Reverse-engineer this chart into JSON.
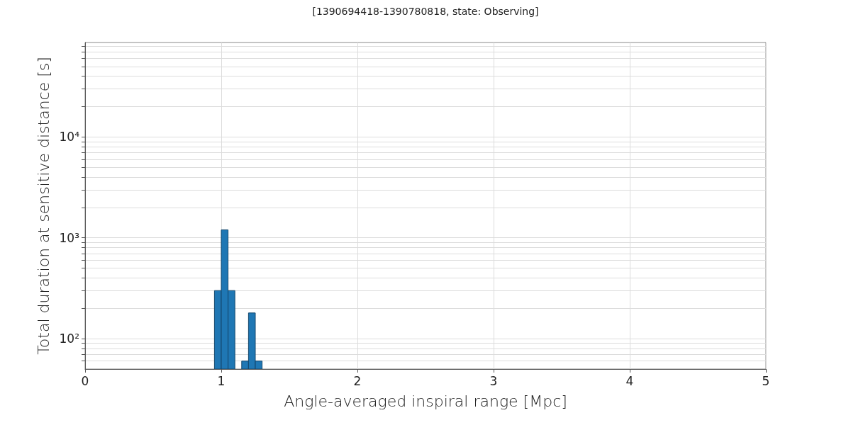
{
  "chart_data": {
    "type": "histogram",
    "title": "[1390694418-1390780818, state: Observing]",
    "xlabel": "Angle-averaged inspiral range [Mpc]",
    "ylabel": "Total duration at sensitive distance [s]",
    "bins": [
      0.95,
      1.0,
      1.05,
      1.1,
      1.15,
      1.2,
      1.25,
      1.3
    ],
    "values": [
      300,
      1200,
      300,
      null,
      60,
      180,
      60
    ],
    "color": "#1f77b4",
    "xlim": [
      0,
      5
    ],
    "xticks": [
      0,
      1,
      2,
      3,
      4,
      5
    ],
    "ylim": [
      50,
      86400
    ],
    "yticks": [
      {
        "value": 60,
        "label": null
      },
      {
        "value": 70,
        "label": null
      },
      {
        "value": 80,
        "label": null
      },
      {
        "value": 90,
        "label": null
      },
      {
        "value": 100,
        "label": "10²"
      },
      {
        "value": 200,
        "label": null
      },
      {
        "value": 300,
        "label": null
      },
      {
        "value": 400,
        "label": null
      },
      {
        "value": 500,
        "label": null
      },
      {
        "value": 600,
        "label": null
      },
      {
        "value": 700,
        "label": null
      },
      {
        "value": 800,
        "label": null
      },
      {
        "value": 900,
        "label": null
      },
      {
        "value": 1000,
        "label": "10³"
      },
      {
        "value": 2000,
        "label": null
      },
      {
        "value": 3000,
        "label": null
      },
      {
        "value": 4000,
        "label": null
      },
      {
        "value": 5000,
        "label": null
      },
      {
        "value": 6000,
        "label": null
      },
      {
        "value": 7000,
        "label": null
      },
      {
        "value": 8000,
        "label": null
      },
      {
        "value": 9000,
        "label": null
      },
      {
        "value": 10000,
        "label": "10⁴"
      },
      {
        "value": 20000,
        "label": null
      },
      {
        "value": 30000,
        "label": null
      },
      {
        "value": 40000,
        "label": null
      },
      {
        "value": 50000,
        "label": null
      },
      {
        "value": 60000,
        "label": null
      },
      {
        "value": 70000,
        "label": null
      },
      {
        "value": 80000,
        "label": null
      }
    ],
    "log": "y",
    "grid": true
  }
}
